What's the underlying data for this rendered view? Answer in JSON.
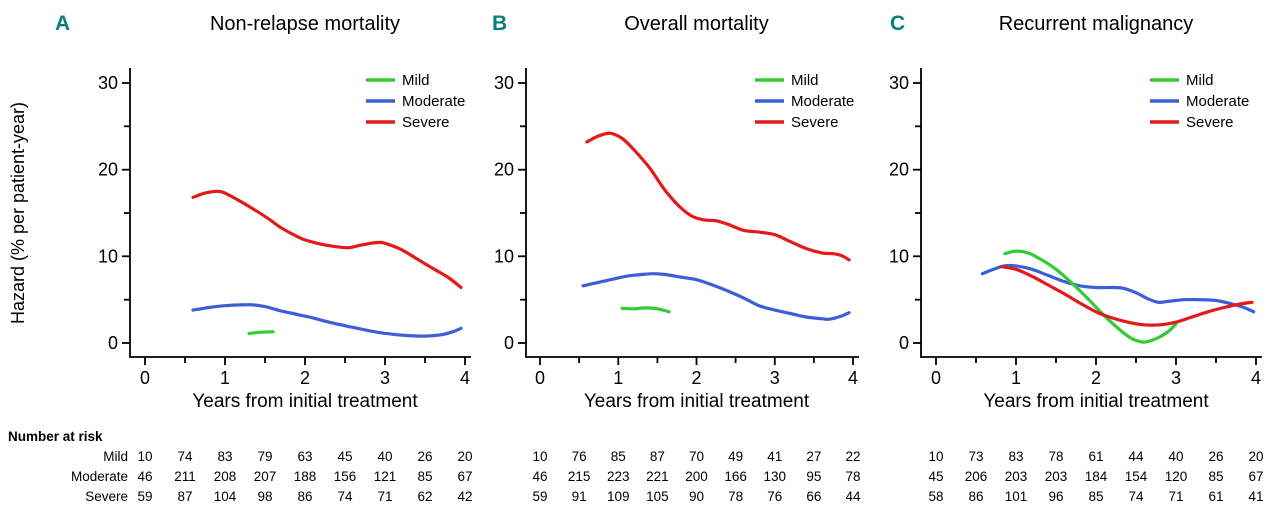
{
  "figure": {
    "background": "#ffffff",
    "x_axis_label": "Years from initial treatment",
    "y_axis_label": "Hazard (% per patient-year)"
  },
  "colors": {
    "mild": "#33cc33",
    "moderate": "#3d5ed9",
    "severe": "#e31a1a",
    "panel_letter": "#0e7d7d",
    "axis": "#000000"
  },
  "legend": {
    "items": [
      {
        "key": "mild",
        "label": "Mild"
      },
      {
        "key": "moderate",
        "label": "Moderate"
      },
      {
        "key": "severe",
        "label": "Severe"
      }
    ],
    "position": "top-right"
  },
  "chart_data": [
    {
      "id": "A",
      "panel_letter": "A",
      "title": "Non-relapse mortality",
      "type": "line",
      "xlabel": "Years from initial treatment",
      "ylabel": "Hazard (% per patient-year)",
      "xlim": [
        0,
        4
      ],
      "ylim": [
        0,
        30
      ],
      "xticks": {
        "major": [
          0,
          1,
          2,
          3,
          4
        ],
        "minor": [
          0.5,
          1.5,
          2.5,
          3.5
        ]
      },
      "yticks": {
        "major": [
          0,
          10,
          20,
          30
        ],
        "minor": [
          5,
          15,
          25
        ]
      },
      "grid": false,
      "series": [
        {
          "name": "Severe",
          "color_key": "severe",
          "points": [
            [
              0.6,
              16.8
            ],
            [
              0.75,
              17.3
            ],
            [
              0.9,
              17.5
            ],
            [
              1.0,
              17.3
            ],
            [
              1.2,
              16.3
            ],
            [
              1.4,
              15.2
            ],
            [
              1.55,
              14.3
            ],
            [
              1.7,
              13.3
            ],
            [
              1.9,
              12.3
            ],
            [
              2.0,
              11.9
            ],
            [
              2.2,
              11.4
            ],
            [
              2.4,
              11.1
            ],
            [
              2.55,
              11.0
            ],
            [
              2.7,
              11.3
            ],
            [
              2.9,
              11.6
            ],
            [
              3.0,
              11.5
            ],
            [
              3.2,
              10.8
            ],
            [
              3.4,
              9.7
            ],
            [
              3.6,
              8.6
            ],
            [
              3.8,
              7.5
            ],
            [
              3.95,
              6.4
            ]
          ]
        },
        {
          "name": "Moderate",
          "color_key": "moderate",
          "points": [
            [
              0.6,
              3.8
            ],
            [
              0.8,
              4.1
            ],
            [
              1.0,
              4.3
            ],
            [
              1.2,
              4.4
            ],
            [
              1.35,
              4.4
            ],
            [
              1.5,
              4.2
            ],
            [
              1.7,
              3.7
            ],
            [
              1.9,
              3.3
            ],
            [
              2.1,
              2.9
            ],
            [
              2.3,
              2.4
            ],
            [
              2.5,
              2.0
            ],
            [
              2.7,
              1.6
            ],
            [
              2.9,
              1.25
            ],
            [
              3.1,
              1.0
            ],
            [
              3.3,
              0.85
            ],
            [
              3.5,
              0.8
            ],
            [
              3.7,
              0.95
            ],
            [
              3.85,
              1.3
            ],
            [
              3.95,
              1.7
            ]
          ]
        },
        {
          "name": "Mild",
          "color_key": "mild",
          "points": [
            [
              1.3,
              1.1
            ],
            [
              1.45,
              1.25
            ],
            [
              1.6,
              1.3
            ]
          ]
        }
      ]
    },
    {
      "id": "B",
      "panel_letter": "B",
      "title": "Overall mortality",
      "type": "line",
      "xlabel": "Years from initial treatment",
      "ylabel": "",
      "xlim": [
        0,
        4
      ],
      "ylim": [
        0,
        30
      ],
      "xticks": {
        "major": [
          0,
          1,
          2,
          3,
          4
        ],
        "minor": [
          0.5,
          1.5,
          2.5,
          3.5
        ]
      },
      "yticks": {
        "major": [
          0,
          10,
          20,
          30
        ],
        "minor": [
          5,
          15,
          25
        ]
      },
      "grid": false,
      "series": [
        {
          "name": "Severe",
          "color_key": "severe",
          "points": [
            [
              0.6,
              23.2
            ],
            [
              0.75,
              23.9
            ],
            [
              0.9,
              24.2
            ],
            [
              1.05,
              23.6
            ],
            [
              1.2,
              22.3
            ],
            [
              1.4,
              20.2
            ],
            [
              1.6,
              17.6
            ],
            [
              1.8,
              15.6
            ],
            [
              1.95,
              14.6
            ],
            [
              2.1,
              14.2
            ],
            [
              2.25,
              14.1
            ],
            [
              2.4,
              13.7
            ],
            [
              2.6,
              13.0
            ],
            [
              2.8,
              12.8
            ],
            [
              3.0,
              12.5
            ],
            [
              3.2,
              11.7
            ],
            [
              3.4,
              10.9
            ],
            [
              3.6,
              10.4
            ],
            [
              3.75,
              10.3
            ],
            [
              3.85,
              10.1
            ],
            [
              3.95,
              9.6
            ]
          ]
        },
        {
          "name": "Moderate",
          "color_key": "moderate",
          "points": [
            [
              0.55,
              6.6
            ],
            [
              0.7,
              6.9
            ],
            [
              0.9,
              7.3
            ],
            [
              1.1,
              7.7
            ],
            [
              1.3,
              7.9
            ],
            [
              1.45,
              8.0
            ],
            [
              1.6,
              7.9
            ],
            [
              1.8,
              7.6
            ],
            [
              2.0,
              7.3
            ],
            [
              2.2,
              6.7
            ],
            [
              2.4,
              6.0
            ],
            [
              2.6,
              5.2
            ],
            [
              2.8,
              4.3
            ],
            [
              3.0,
              3.8
            ],
            [
              3.2,
              3.4
            ],
            [
              3.4,
              3.0
            ],
            [
              3.6,
              2.8
            ],
            [
              3.7,
              2.75
            ],
            [
              3.85,
              3.1
            ],
            [
              3.95,
              3.5
            ]
          ]
        },
        {
          "name": "Mild",
          "color_key": "mild",
          "points": [
            [
              1.05,
              4.0
            ],
            [
              1.2,
              3.95
            ],
            [
              1.35,
              4.05
            ],
            [
              1.5,
              3.95
            ],
            [
              1.65,
              3.6
            ]
          ]
        }
      ]
    },
    {
      "id": "C",
      "panel_letter": "C",
      "title": "Recurrent malignancy",
      "type": "line",
      "xlabel": "Years from initial treatment",
      "ylabel": "",
      "xlim": [
        0,
        4
      ],
      "ylim": [
        0,
        30
      ],
      "xticks": {
        "major": [
          0,
          1,
          2,
          3,
          4
        ],
        "minor": [
          0.5,
          1.5,
          2.5,
          3.5
        ]
      },
      "yticks": {
        "major": [
          0,
          10,
          20,
          30
        ],
        "minor": [
          5,
          15,
          25
        ]
      },
      "grid": false,
      "series": [
        {
          "name": "Moderate",
          "color_key": "moderate",
          "points": [
            [
              0.58,
              8.0
            ],
            [
              0.72,
              8.5
            ],
            [
              0.85,
              8.9
            ],
            [
              1.0,
              8.9
            ],
            [
              1.2,
              8.5
            ],
            [
              1.4,
              7.8
            ],
            [
              1.6,
              7.1
            ],
            [
              1.8,
              6.6
            ],
            [
              2.0,
              6.4
            ],
            [
              2.2,
              6.4
            ],
            [
              2.35,
              6.3
            ],
            [
              2.5,
              5.8
            ],
            [
              2.65,
              5.1
            ],
            [
              2.78,
              4.7
            ],
            [
              2.9,
              4.8
            ],
            [
              3.1,
              5.0
            ],
            [
              3.3,
              5.0
            ],
            [
              3.5,
              4.9
            ],
            [
              3.7,
              4.5
            ],
            [
              3.85,
              4.1
            ],
            [
              3.97,
              3.6
            ]
          ]
        },
        {
          "name": "Mild",
          "color_key": "mild",
          "points": [
            [
              0.86,
              10.3
            ],
            [
              1.0,
              10.6
            ],
            [
              1.15,
              10.4
            ],
            [
              1.3,
              9.7
            ],
            [
              1.5,
              8.5
            ],
            [
              1.7,
              6.9
            ],
            [
              1.9,
              5.1
            ],
            [
              2.1,
              3.2
            ],
            [
              2.3,
              1.5
            ],
            [
              2.45,
              0.5
            ],
            [
              2.6,
              0.1
            ],
            [
              2.75,
              0.5
            ],
            [
              2.9,
              1.3
            ],
            [
              3.0,
              2.2
            ]
          ]
        },
        {
          "name": "Severe",
          "color_key": "severe",
          "points": [
            [
              0.82,
              8.8
            ],
            [
              1.0,
              8.5
            ],
            [
              1.2,
              7.7
            ],
            [
              1.4,
              6.7
            ],
            [
              1.6,
              5.7
            ],
            [
              1.8,
              4.6
            ],
            [
              2.0,
              3.6
            ],
            [
              2.2,
              2.9
            ],
            [
              2.4,
              2.4
            ],
            [
              2.6,
              2.1
            ],
            [
              2.8,
              2.1
            ],
            [
              3.0,
              2.4
            ],
            [
              3.2,
              3.0
            ],
            [
              3.4,
              3.6
            ],
            [
              3.6,
              4.1
            ],
            [
              3.8,
              4.5
            ],
            [
              3.95,
              4.7
            ]
          ]
        }
      ]
    }
  ],
  "risk_table": {
    "header": "Number at risk",
    "row_labels": [
      "Mild",
      "Moderate",
      "Severe"
    ],
    "time_points": [
      0,
      0.5,
      1,
      1.5,
      2,
      2.5,
      3,
      3.5,
      4
    ],
    "panels": [
      {
        "panel": "A",
        "rows": [
          [
            10,
            74,
            83,
            79,
            63,
            45,
            40,
            26,
            20
          ],
          [
            46,
            211,
            208,
            207,
            188,
            156,
            121,
            85,
            67
          ],
          [
            59,
            87,
            104,
            98,
            86,
            74,
            71,
            62,
            42
          ]
        ]
      },
      {
        "panel": "B",
        "rows": [
          [
            10,
            76,
            85,
            87,
            70,
            49,
            41,
            27,
            22
          ],
          [
            46,
            215,
            223,
            221,
            200,
            166,
            130,
            95,
            78
          ],
          [
            59,
            91,
            109,
            105,
            90,
            78,
            76,
            66,
            44
          ]
        ]
      },
      {
        "panel": "C",
        "rows": [
          [
            10,
            73,
            83,
            78,
            61,
            44,
            40,
            26,
            20
          ],
          [
            45,
            206,
            203,
            203,
            184,
            154,
            120,
            85,
            67
          ],
          [
            58,
            86,
            101,
            96,
            85,
            74,
            71,
            61,
            41
          ]
        ]
      }
    ]
  }
}
